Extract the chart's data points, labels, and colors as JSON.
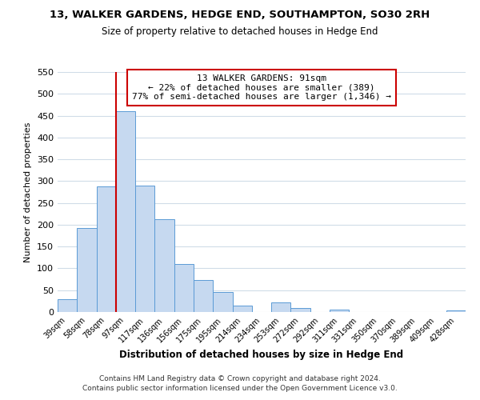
{
  "title1": "13, WALKER GARDENS, HEDGE END, SOUTHAMPTON, SO30 2RH",
  "title2": "Size of property relative to detached houses in Hedge End",
  "xlabel": "Distribution of detached houses by size in Hedge End",
  "ylabel": "Number of detached properties",
  "bar_labels": [
    "39sqm",
    "58sqm",
    "78sqm",
    "97sqm",
    "117sqm",
    "136sqm",
    "156sqm",
    "175sqm",
    "195sqm",
    "214sqm",
    "234sqm",
    "253sqm",
    "272sqm",
    "292sqm",
    "311sqm",
    "331sqm",
    "350sqm",
    "370sqm",
    "389sqm",
    "409sqm",
    "428sqm"
  ],
  "bar_values": [
    30,
    192,
    287,
    460,
    290,
    212,
    110,
    74,
    46,
    14,
    0,
    22,
    10,
    0,
    5,
    0,
    0,
    0,
    0,
    0,
    3
  ],
  "bar_color": "#c6d9f0",
  "bar_edge_color": "#5b9bd5",
  "vline_x_index": 3,
  "vline_color": "#cc0000",
  "ylim": [
    0,
    550
  ],
  "yticks": [
    0,
    50,
    100,
    150,
    200,
    250,
    300,
    350,
    400,
    450,
    500,
    550
  ],
  "annotation_title": "13 WALKER GARDENS: 91sqm",
  "annotation_line1": "← 22% of detached houses are smaller (389)",
  "annotation_line2": "77% of semi-detached houses are larger (1,346) →",
  "annotation_box_color": "#ffffff",
  "annotation_box_edge": "#cc0000",
  "footer1": "Contains HM Land Registry data © Crown copyright and database right 2024.",
  "footer2": "Contains public sector information licensed under the Open Government Licence v3.0.",
  "grid_color": "#d0dce8",
  "background_color": "#ffffff"
}
